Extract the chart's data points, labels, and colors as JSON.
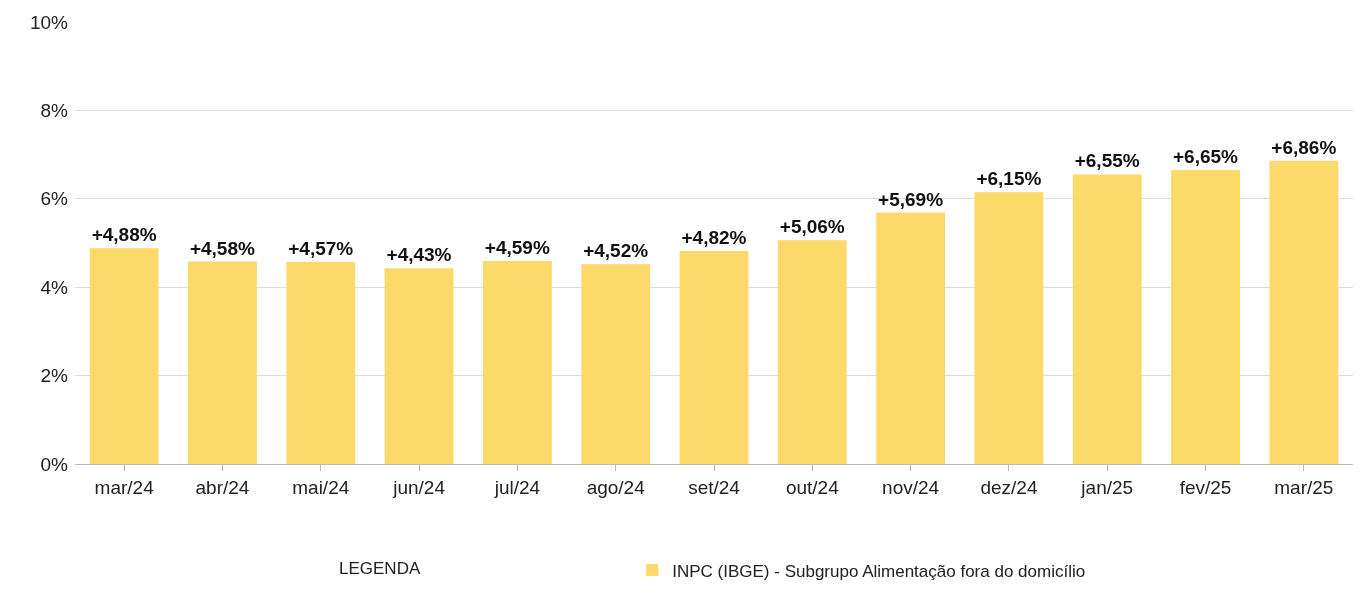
{
  "chart_data": {
    "type": "bar",
    "categories": [
      "mar/24",
      "abr/24",
      "mai/24",
      "jun/24",
      "jul/24",
      "ago/24",
      "set/24",
      "out/24",
      "nov/24",
      "dez/24",
      "jan/25",
      "fev/25",
      "mar/25"
    ],
    "series": [
      {
        "name": "INPC (IBGE) - Subgrupo Alimentação fora do domicílio",
        "color": "#fdd96a",
        "values": [
          4.88,
          4.58,
          4.57,
          4.43,
          4.59,
          4.52,
          4.82,
          5.06,
          5.69,
          6.15,
          6.55,
          6.65,
          6.86
        ],
        "value_labels": [
          "+4,88%",
          "+4,58%",
          "+4,57%",
          "+4,43%",
          "+4,59%",
          "+4,52%",
          "+4,82%",
          "+5,06%",
          "+5,69%",
          "+6,15%",
          "+6,55%",
          "+6,65%",
          "+6,86%"
        ]
      }
    ],
    "ylim": [
      0,
      10
    ],
    "yticks": [
      {
        "value": 0,
        "label": "0%"
      },
      {
        "value": 2,
        "label": "2%"
      },
      {
        "value": 4,
        "label": "4%"
      },
      {
        "value": 6,
        "label": "6%"
      },
      {
        "value": 8,
        "label": "8%"
      },
      {
        "value": 10,
        "label": "10%"
      }
    ],
    "grid": "y",
    "legend": "bottom",
    "legend_title": "LEGENDA"
  }
}
